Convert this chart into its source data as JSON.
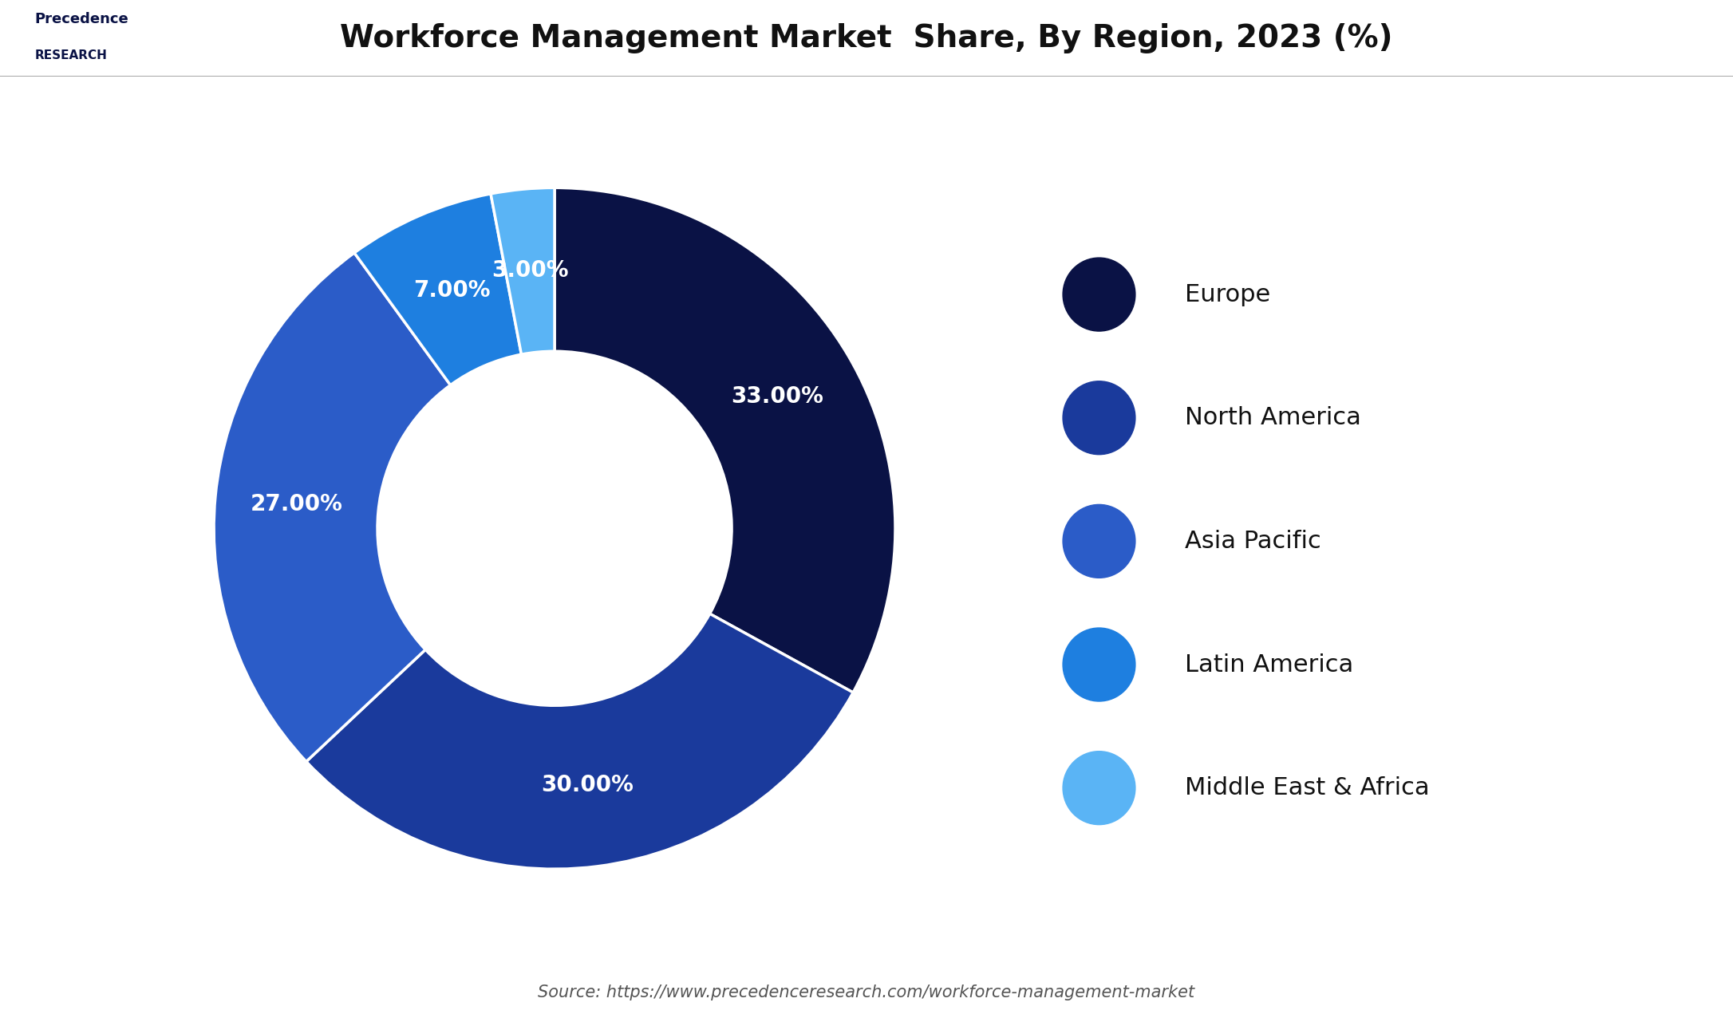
{
  "title": "Workforce Management Market  Share, By Region, 2023 (%)",
  "labels": [
    "Europe",
    "North America",
    "Asia Pacific",
    "Latin America",
    "Middle East & Africa"
  ],
  "values": [
    33.0,
    30.0,
    27.0,
    7.0,
    3.0
  ],
  "colors": [
    "#0a1245",
    "#1a3a9c",
    "#2b5cc8",
    "#1e7fe0",
    "#5ab4f5"
  ],
  "pct_labels": [
    "33.00%",
    "30.00%",
    "27.00%",
    "7.00%",
    "3.00%"
  ],
  "source_text": "Source: https://www.precedenceresearch.com/workforce-management-market",
  "bg_color": "#ffffff",
  "legend_dot_colors": [
    "#0a1245",
    "#1a3a9c",
    "#2b5cc8",
    "#1e7fe0",
    "#5ab4f5"
  ],
  "title_fontsize": 28,
  "label_fontsize": 20,
  "legend_fontsize": 22,
  "source_fontsize": 15
}
